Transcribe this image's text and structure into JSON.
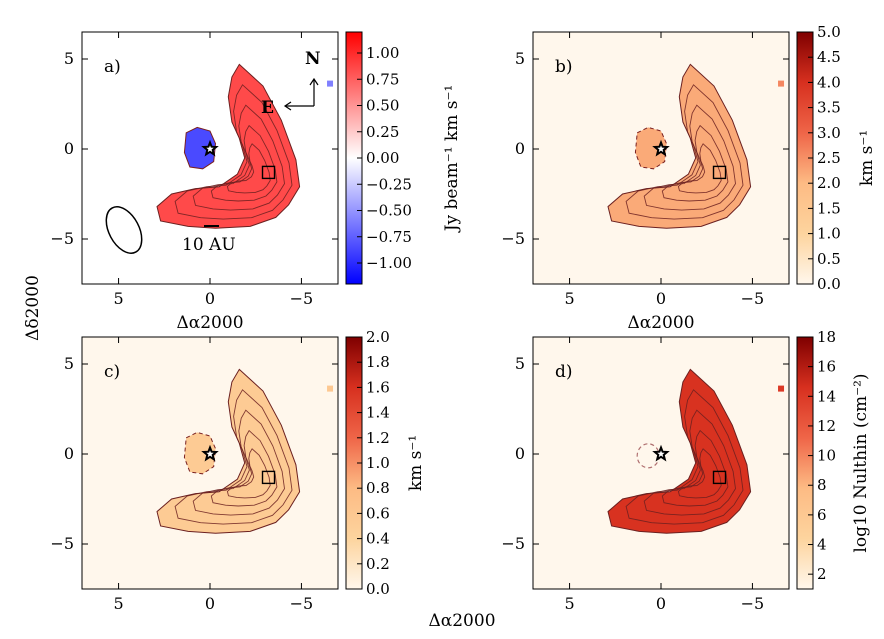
{
  "figure": {
    "shared_ylabel": "Δδ2000",
    "shared_xlabel": "Δα2000"
  },
  "chart_data": [
    {
      "type": "heatmap",
      "panel_label": "a)",
      "xlabel": "Δα2000",
      "ylabel": "",
      "xlim": [
        7,
        -7
      ],
      "ylim": [
        -7.5,
        6.5
      ],
      "xticks": [
        5,
        0,
        -5
      ],
      "yticks": [
        5,
        0,
        -5
      ],
      "colorbar": {
        "label": "Jy beam⁻¹ km s⁻¹",
        "range": [
          -1.2,
          1.2
        ],
        "ticks": [
          "1.00",
          "0.75",
          "0.50",
          "0.25",
          "0.00",
          "−0.25",
          "−0.50",
          "−0.75",
          "−1.00"
        ],
        "colormap": "bwr"
      },
      "annotations": {
        "north": "N",
        "east": "E",
        "scale_bar": "10 AU"
      },
      "markers": [
        {
          "kind": "star",
          "x": 0,
          "y": 0
        },
        {
          "kind": "square",
          "x": -3.2,
          "y": -1.3
        }
      ],
      "regions": [
        {
          "name": "crescent",
          "value": 0.85
        },
        {
          "name": "blob",
          "value": -0.85
        },
        {
          "name": "speck",
          "value": -0.6
        }
      ]
    },
    {
      "type": "heatmap",
      "panel_label": "b)",
      "xlabel": "Δα2000",
      "ylabel": "",
      "xlim": [
        7,
        -7
      ],
      "ylim": [
        -7.5,
        6.5
      ],
      "xticks": [
        5,
        0,
        -5
      ],
      "yticks": [
        5,
        0,
        -5
      ],
      "colorbar": {
        "label": "km s⁻¹",
        "range": [
          0,
          5.0
        ],
        "ticks": [
          "5.0",
          "4.5",
          "4.0",
          "3.5",
          "3.0",
          "2.5",
          "2.0",
          "1.5",
          "1.0",
          "0.5",
          "0.0"
        ],
        "colormap": "OrRd"
      },
      "markers": [
        {
          "kind": "star",
          "x": 0,
          "y": 0
        },
        {
          "kind": "square",
          "x": -3.2,
          "y": -1.3
        }
      ],
      "regions": [
        {
          "name": "crescent",
          "value": 2.2
        },
        {
          "name": "blob",
          "value": 2.2
        },
        {
          "name": "speck",
          "value": 2.6
        }
      ]
    },
    {
      "type": "heatmap",
      "panel_label": "c)",
      "xlabel": "",
      "ylabel": "",
      "xlim": [
        7,
        -7
      ],
      "ylim": [
        -7.5,
        6.5
      ],
      "xticks": [
        5,
        0,
        -5
      ],
      "yticks": [
        5,
        0,
        -5
      ],
      "colorbar": {
        "label": "km s⁻¹",
        "range": [
          0,
          2.0
        ],
        "ticks": [
          "2.0",
          "1.8",
          "1.6",
          "1.4",
          "1.2",
          "1.0",
          "0.8",
          "0.6",
          "0.4",
          "0.2",
          "0.0"
        ],
        "colormap": "OrRd"
      },
      "markers": [
        {
          "kind": "star",
          "x": 0,
          "y": 0
        },
        {
          "kind": "square",
          "x": -3.2,
          "y": -1.3
        }
      ],
      "regions": [
        {
          "name": "crescent",
          "value": 0.55
        },
        {
          "name": "blob",
          "value": 0.55
        },
        {
          "name": "speck",
          "value": 0.6
        }
      ]
    },
    {
      "type": "heatmap",
      "panel_label": "d)",
      "xlabel": "",
      "ylabel": "",
      "xlim": [
        7,
        -7
      ],
      "ylim": [
        -7.5,
        6.5
      ],
      "xticks": [
        5,
        0,
        -5
      ],
      "yticks": [
        5,
        0,
        -5
      ],
      "colorbar": {
        "label": "log10 Nulthin (cm⁻²)",
        "range": [
          1,
          18
        ],
        "ticks": [
          "18",
          "16",
          "14",
          "12",
          "10",
          "8",
          "6",
          "4",
          "2"
        ],
        "colormap": "OrRd"
      },
      "markers": [
        {
          "kind": "star",
          "x": 0,
          "y": 0
        },
        {
          "kind": "square",
          "x": -3.2,
          "y": -1.3
        }
      ],
      "regions": [
        {
          "name": "crescent",
          "value": 14.5
        },
        {
          "name": "blob",
          "value": null
        },
        {
          "name": "speck",
          "value": 14
        }
      ]
    }
  ]
}
